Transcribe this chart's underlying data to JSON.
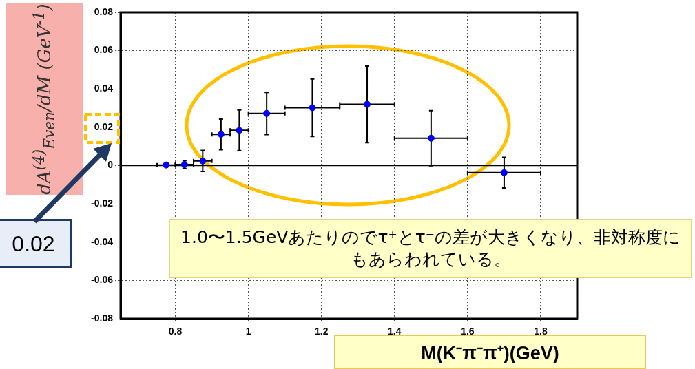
{
  "chart_data": {
    "type": "scatter",
    "xlabel": "M(K⁻π⁻π⁺)(GeV)",
    "ylabel": "dA$^{(4)}$$_{Even}$/dM (GeV$^{-1}$)",
    "x": [
      0.775,
      0.825,
      0.875,
      0.925,
      0.975,
      1.05,
      1.175,
      1.325,
      1.5,
      1.7
    ],
    "series": [
      {
        "color": "#0000ff",
        "values": [
          0.0003,
          0.0005,
          0.0024,
          0.0163,
          0.0184,
          0.0272,
          0.0302,
          0.032,
          0.0143,
          -0.0037
        ],
        "errors": [
          null,
          0.002,
          0.0055,
          0.008,
          0.0106,
          0.011,
          0.015,
          0.02,
          0.0144,
          0.008
        ],
        "xerrors": [
          0.025,
          0.025,
          0.025,
          0.025,
          0.025,
          0.05,
          0.075,
          0.075,
          0.1,
          0.1
        ]
      }
    ],
    "xlim": [
      0.65,
      1.9
    ],
    "xticks": [
      0.8,
      1,
      1.2,
      1.4,
      1.6,
      1.8
    ],
    "ylim": [
      -0.08,
      0.08
    ],
    "yticks": [
      -0.08,
      -0.06,
      -0.04,
      -0.02,
      0,
      0.02,
      0.04,
      0.06,
      0.08
    ],
    "grid": true,
    "legend": false,
    "marker": "circle",
    "ref_lines": [
      {
        "axis": "y",
        "value": 0,
        "color": "#000000",
        "line_style": "solid"
      }
    ],
    "annotations": [
      "0.02",
      "1.0〜1.5GeVあたりのでτ⁺とτ⁻の差が大きくなり、非対称度にもあらわれている。"
    ]
  }
}
